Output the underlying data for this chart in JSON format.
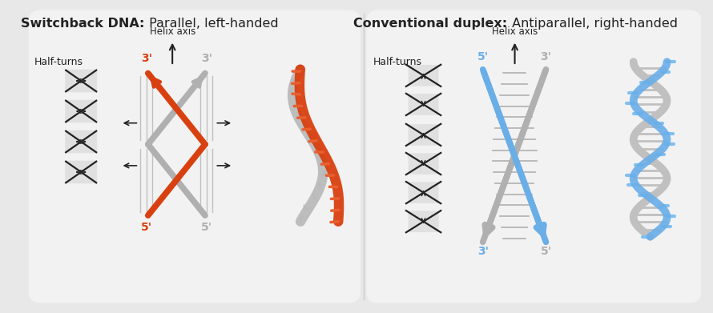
{
  "bg_color": "#e8e8e8",
  "panel_bg": "#f2f2f2",
  "title_left_bold": "Switchback DNA:",
  "title_left_normal": " Parallel, left-handed",
  "title_right_bold": "Conventional duplex:",
  "title_right_normal": " Antiparallel, right-handed",
  "orange_color": "#d94010",
  "gray_strand": "#b0b0b0",
  "blue_color": "#6aaee8",
  "dark": "#222222",
  "med_gray": "#888888",
  "half_turns_label": "Half-turns",
  "helix_axis_label": "Helix axis"
}
